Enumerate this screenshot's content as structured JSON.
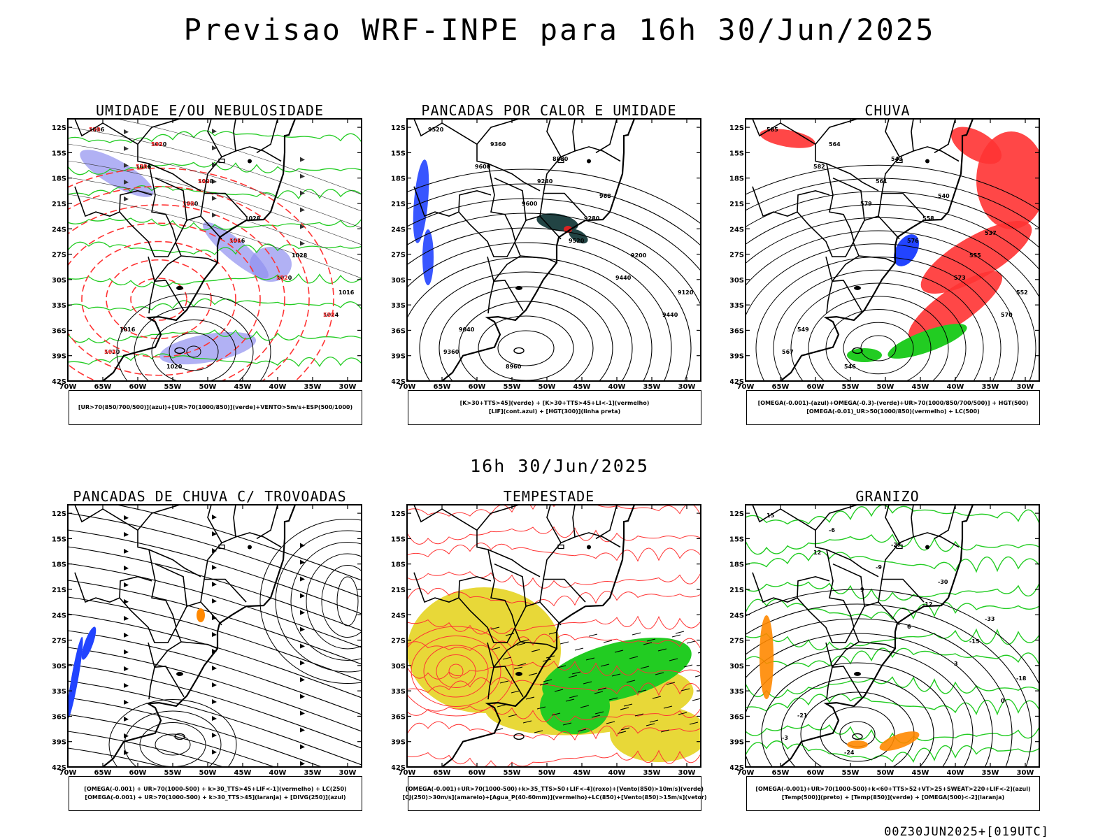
{
  "title": "Previsao WRF-INPE  para 16h 30/Jun/2025",
  "mid_date": "16h 30/Jun/2025",
  "footer": "00Z30JUN2025+[019UTC]",
  "lat_ticks": [
    "12S",
    "15S",
    "18S",
    "21S",
    "24S",
    "27S",
    "30S",
    "33S",
    "36S",
    "39S",
    "42S"
  ],
  "lon_ticks": [
    "70W",
    "65W",
    "60W",
    "55W",
    "50W",
    "45W",
    "40W",
    "35W",
    "30W"
  ],
  "colors": {
    "humid_blue": "#9090f0",
    "green": "#22cc22",
    "red": "#ff3333",
    "yellow": "#e8d838",
    "dark_teal": "#224444",
    "blue": "#2244ff",
    "orange": "#ff8800"
  },
  "panels": [
    {
      "title": "UMIDADE E/OU NEBULOSIDADE",
      "legend": [
        "[UR>70(850/700/500)](azul)+[UR>70(1000/850)](verde)+VENTO>5m/s+ESP(500/1000)"
      ],
      "labels": [
        "1016",
        "1016",
        "1020",
        "1016",
        "1020",
        "1024",
        "1020",
        "1020",
        "1028",
        "1028",
        "1028",
        "1016",
        "1016",
        "1020",
        "570",
        "570",
        "540",
        "546",
        "552",
        "558",
        "564",
        "534",
        "540"
      ]
    },
    {
      "title": "PANCADAS POR CALOR E UMIDADE",
      "legend": [
        "[K>30+TTS>45](verde) + [K>30+TTS>45+LI<-1](vermelho)",
        "[LIF](cont.azul) + [HGT(300)](linha preta)"
      ],
      "labels": [
        "9520",
        "9600",
        "9600",
        "9520",
        "9440",
        "9440",
        "9360",
        "9360",
        "9280",
        "9280",
        "9200",
        "9120",
        "9040",
        "8960",
        "8880",
        "968"
      ]
    },
    {
      "title": "CHUVA",
      "legend": [
        "[OMEGA(-0.001)-(azul)+OMEGA(-0.3)-(verde)+UR>70(1000/850/700/500)] + HGT(500)",
        "[OMEGA(-0.01)_UR>50(1000/850)(vermelho) + LC(500)"
      ],
      "labels": [
        "585",
        "582",
        "579",
        "576",
        "573",
        "570",
        "567",
        "564",
        "561",
        "558",
        "555",
        "552",
        "549",
        "546",
        "543",
        "540",
        "537"
      ]
    },
    {
      "title": "PANCADAS DE CHUVA C/ TROVOADAS",
      "legend": [
        "[OMEGA(-0.001) + UR>70(1000-500) + k>30_TTS>45+LIF<-1](vermelho) + LC(250)",
        "[OMEGA(-0.001) + UR>70(1000-500) + k>30_TTS>45](laranja) + [DIVG(250)](azul)"
      ],
      "labels": []
    },
    {
      "title": "TEMPESTADE",
      "legend": [
        "[OMEGA(-0.001)+UR>70(1000-500)+k>35_TTS>50+LIF<-4](roxo)+[Vento(850)>10m/s](verde)",
        "[CJ(250)>30m/s](amarelo)+[Agua_P(40-60mm)](vermelho)+LC(850)+[Vento(850)>15m/s](vetor)"
      ],
      "labels": []
    },
    {
      "title": "GRANIZO",
      "legend": [
        "[OMEGA(-0.001)+UR>70(1000-500)+k<60+TTS>52+VT>25+SWEAT>220+LIF<-2](azul)",
        "[Temp(500)](preto) + [Temp(850)](verde) + [OMEGA(500)<-2](laranja)"
      ],
      "labels": [
        "15",
        "12",
        "9",
        "6",
        "3",
        "0",
        "-3",
        "-6",
        "-9",
        "-12",
        "-15",
        "-18",
        "-21",
        "-24",
        "-27",
        "-30",
        "-33"
      ]
    }
  ]
}
